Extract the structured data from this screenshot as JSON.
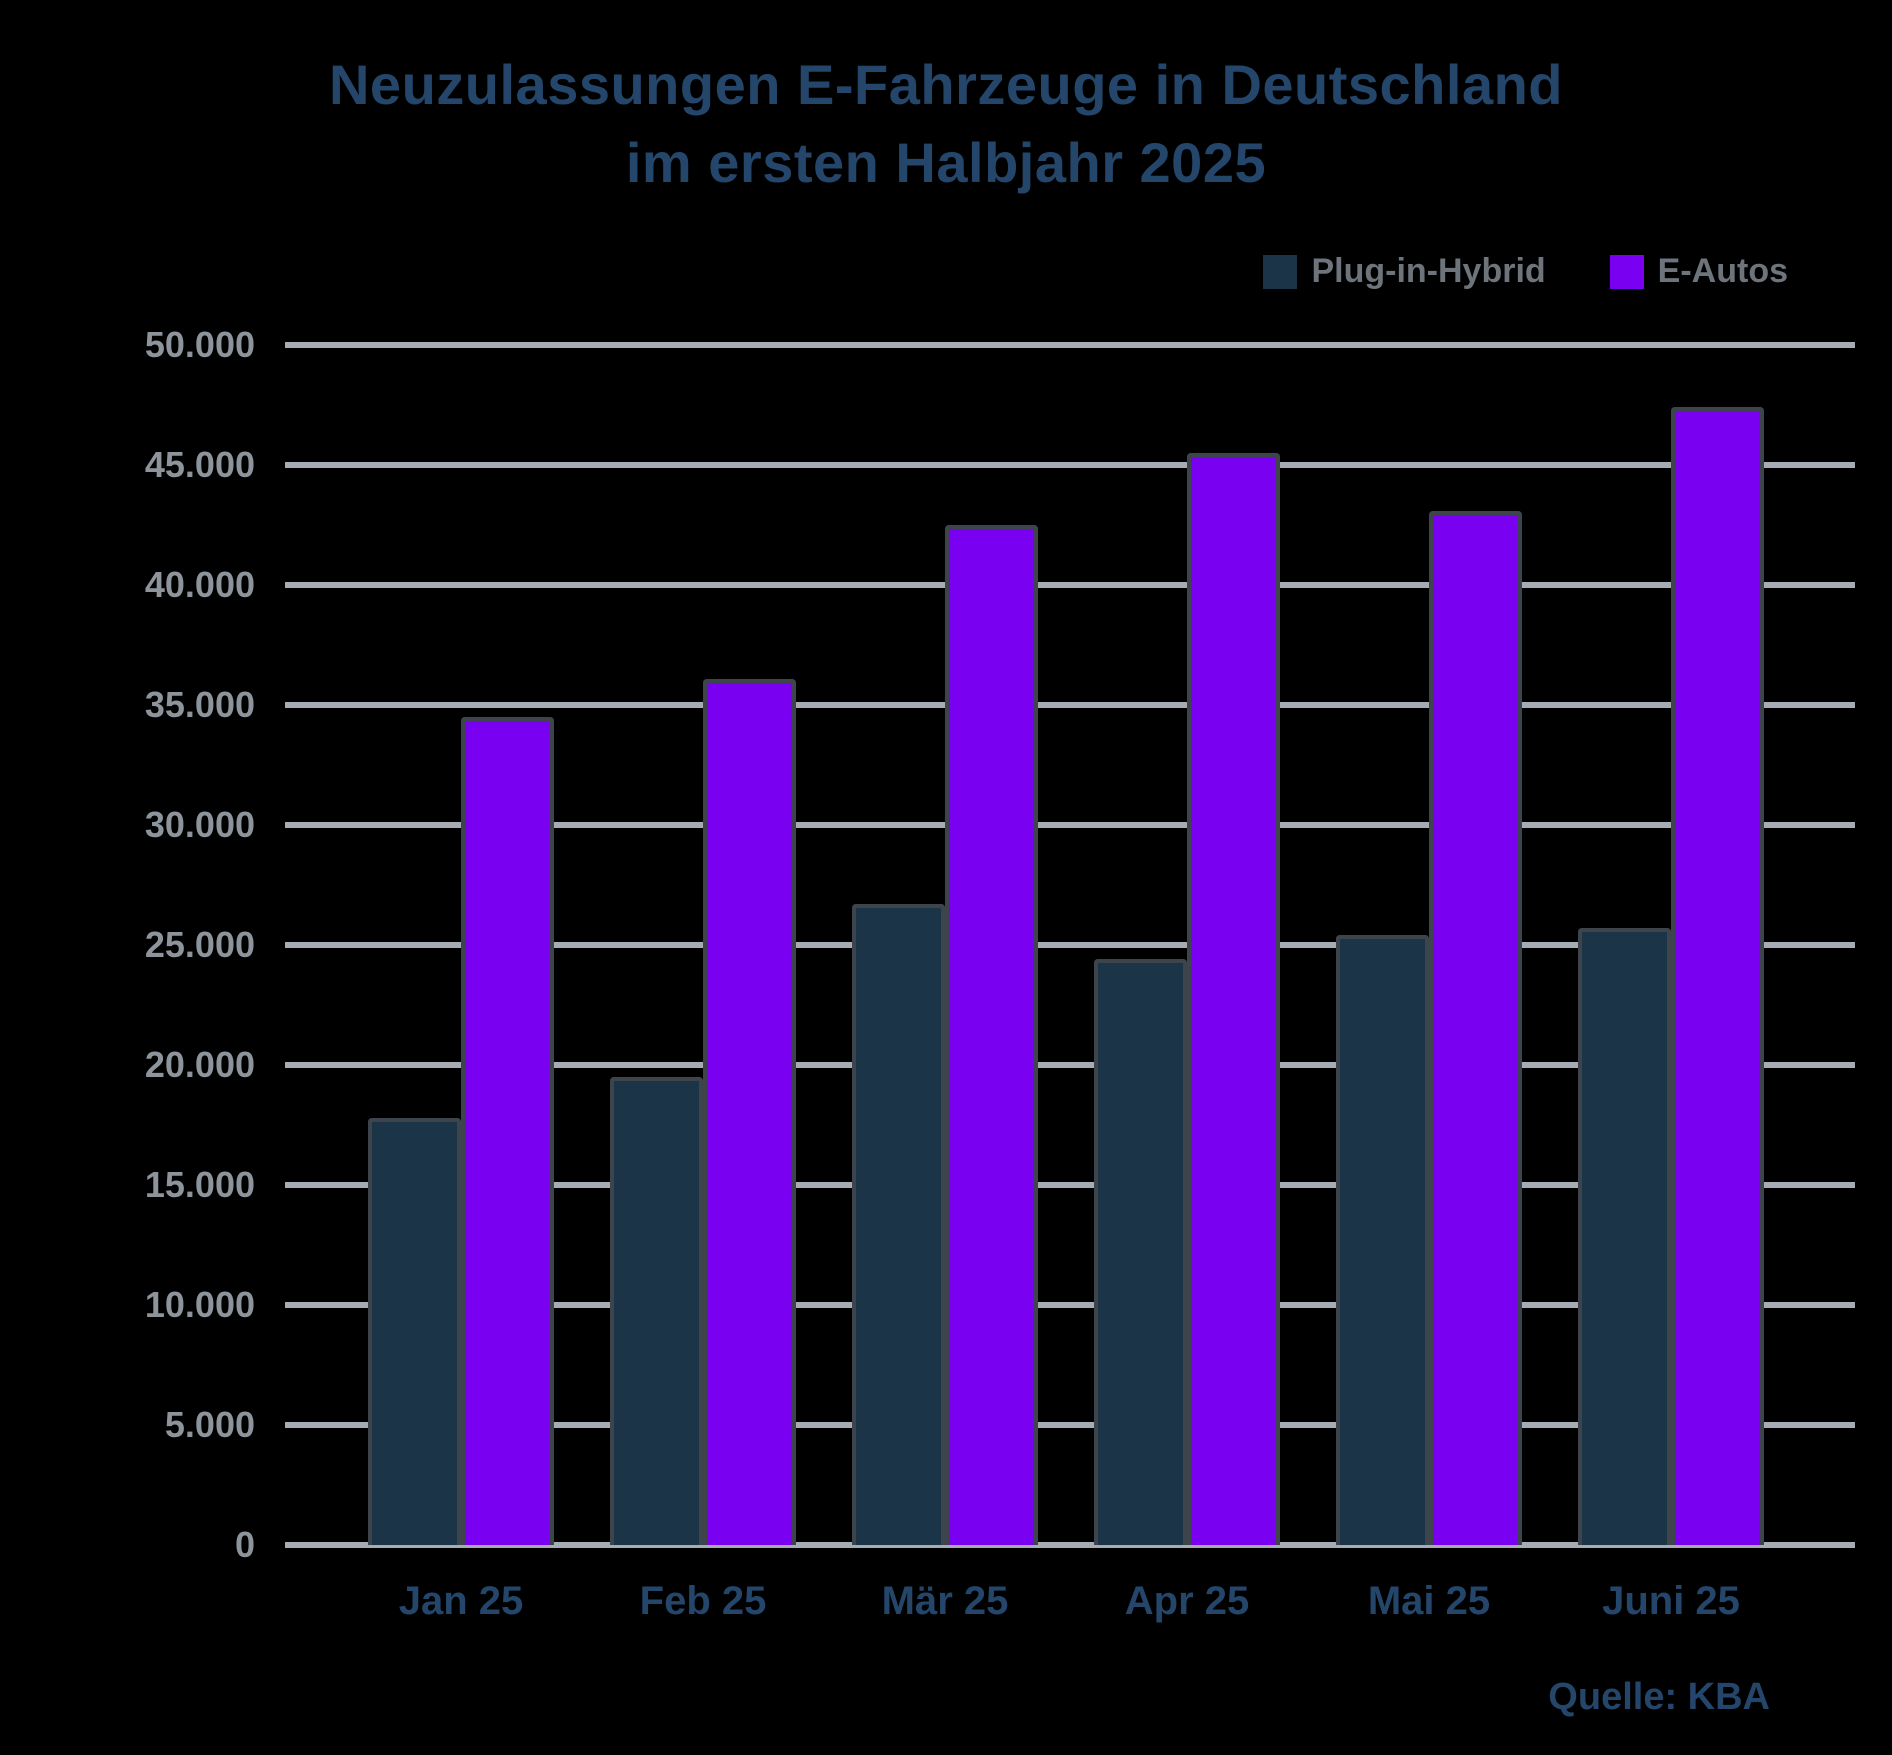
{
  "title": {
    "line1": "Neuzulassungen E-Fahrzeuge in Deutschland",
    "line2": "im ersten Halbjahr 2025"
  },
  "source": "Quelle: KBA",
  "chart_data": {
    "type": "bar",
    "categories": [
      "Jan 25",
      "Feb 25",
      "Mär 25",
      "Apr 25",
      "Mai 25",
      "Juni 25"
    ],
    "series": [
      {
        "name": "Plug-in-Hybrid",
        "color": "#1b3447",
        "values": [
          17800,
          19500,
          26700,
          24400,
          25400,
          25700
        ]
      },
      {
        "name": "E-Autos",
        "color": "#7a00f2",
        "values": [
          34500,
          36100,
          42500,
          45500,
          43100,
          47400
        ]
      }
    ],
    "title": "Neuzulassungen E-Fahrzeuge in Deutschland im ersten Halbjahr 2025",
    "xlabel": "",
    "ylabel": "",
    "ylim": [
      0,
      50000
    ],
    "ytick_step": 5000,
    "ytick_labels": [
      "50.000",
      "45.000",
      "40.000",
      "35.000",
      "30.000",
      "25.000",
      "20.000",
      "15.000",
      "10.000",
      "5.000",
      "0"
    ],
    "grid": true,
    "legend_position": "top-right"
  },
  "colors": {
    "background": "#000000",
    "title_text": "#25466b",
    "axis_label_text": "#8d949c",
    "x_label_text": "#25466b",
    "legend_text": "#6e747b",
    "grid_line": "#a5acb3",
    "bar_border": "#3e444b",
    "source_text": "#25466b"
  }
}
